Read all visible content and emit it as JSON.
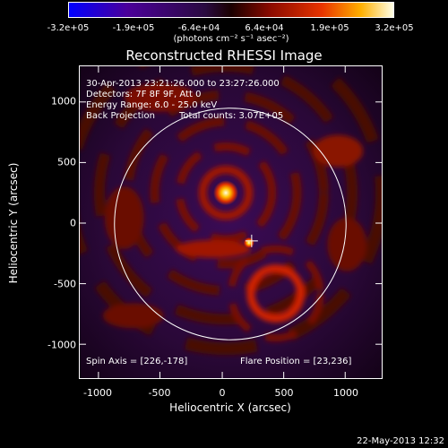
{
  "colorbar": {
    "ticks": [
      "-3.2e+05",
      "-1.9e+05",
      "-6.4e+04",
      "6.4e+04",
      "1.9e+05",
      "3.2e+05"
    ],
    "units": "(photons cm⁻² s⁻¹ asec⁻²)",
    "colors": [
      "#0000ff",
      "#4b009a",
      "#3a0b5a",
      "#5a0b0b",
      "#c81e00",
      "#ff9a00",
      "#ffffe6"
    ]
  },
  "title": "Reconstructed RHESSI Image",
  "info": {
    "time": "30-Apr-2013 23:21:26.000 to 23:27:26.000",
    "detectors": "Detectors: 7F 8F 9F, Att 0",
    "energy": "Energy Range: 6.0 - 25.0 keV",
    "method": "Back Projection",
    "counts": "Total counts: 3.07E+05"
  },
  "notes": {
    "spin_axis": "Spin Axis = [226,-178]",
    "flare_position": "Flare Position = [23,236]"
  },
  "axes": {
    "xlabel": "Heliocentric X (arcsec)",
    "ylabel": "Heliocentric Y (arcsec)",
    "xticks": [
      "-1000",
      "-500",
      "0",
      "500",
      "1000"
    ],
    "yticks": [
      "1000",
      "500",
      "0",
      "-500",
      "-1000"
    ]
  },
  "footer": "22-May-2013 12:32"
}
